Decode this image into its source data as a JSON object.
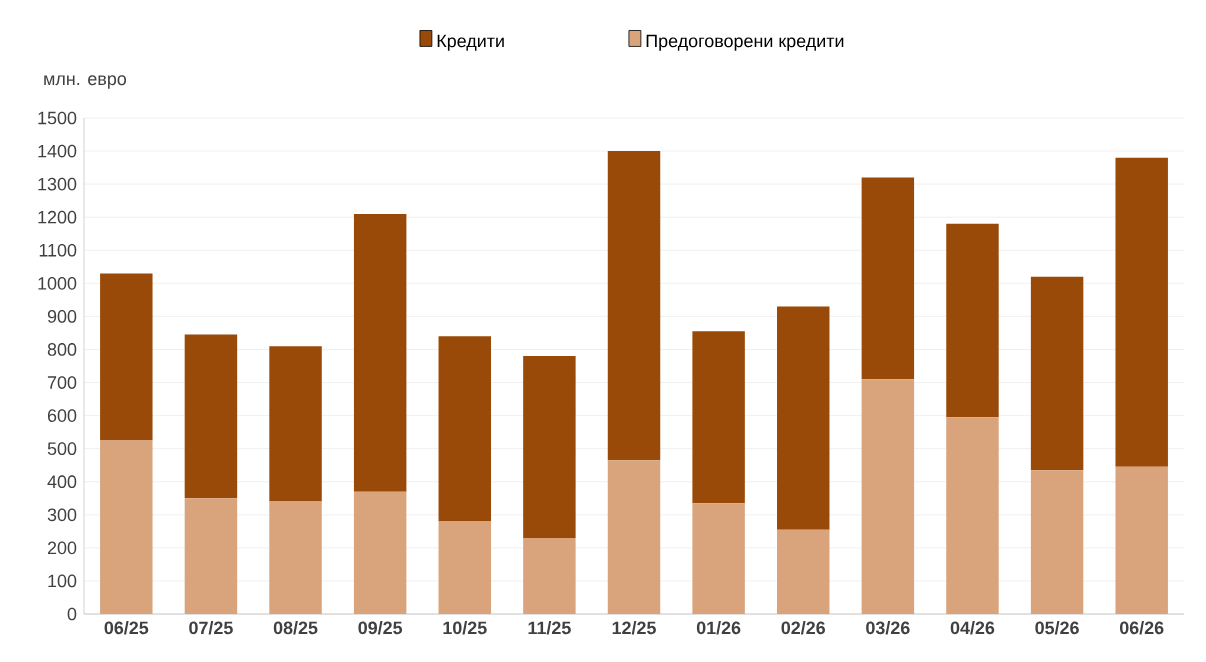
{
  "chart_data": {
    "type": "bar",
    "stacked": true,
    "ylabel": "млн. евро",
    "categories": [
      "06/25",
      "07/25",
      "08/25",
      "09/25",
      "10/25",
      "11/25",
      "12/25",
      "01/26",
      "02/26",
      "03/26",
      "04/26",
      "05/26",
      "06/26"
    ],
    "series": [
      {
        "name": "Предоговорени  кредити",
        "color": "#d9a47c",
        "values": [
          525,
          350,
          340,
          370,
          280,
          230,
          465,
          335,
          255,
          710,
          595,
          435,
          445
        ]
      },
      {
        "name": "Кредити",
        "color": "#9a4a08",
        "values": [
          505,
          495,
          470,
          840,
          560,
          550,
          935,
          520,
          675,
          610,
          585,
          585,
          935
        ]
      }
    ],
    "ylim": [
      0,
      1500
    ],
    "yticks": [
      0,
      100,
      200,
      300,
      400,
      500,
      600,
      700,
      800,
      900,
      1000,
      1100,
      1200,
      1300,
      1400,
      1500
    ],
    "grid": "y",
    "legend": "top"
  }
}
